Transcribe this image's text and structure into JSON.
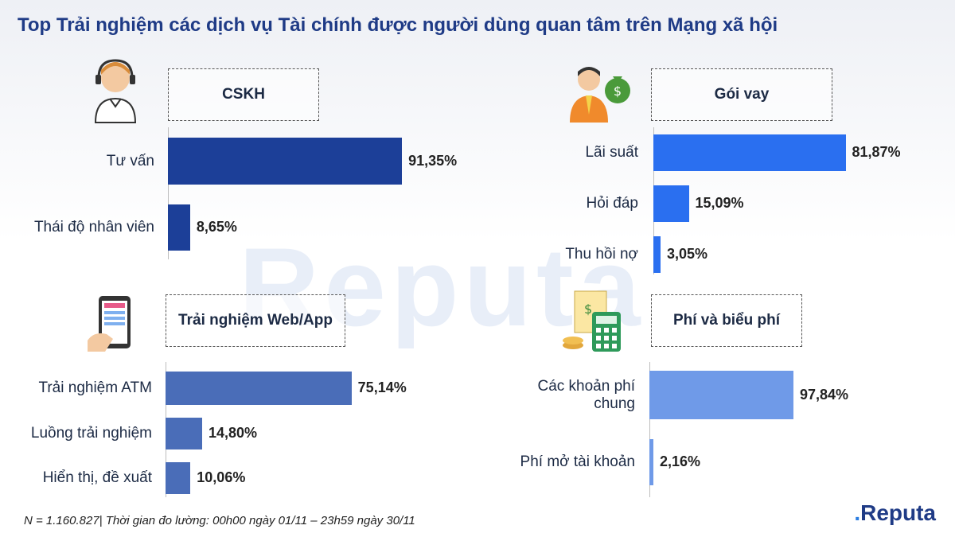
{
  "title": "Top Trải nghiệm các dịch vụ Tài chính được người dùng quan tâm trên Mạng xã hội",
  "watermark": "Reputa",
  "footer": "N = 1.160.827| Thời gian đo lường: 00h00 ngày 01/11 – 23h59 ngày 30/11",
  "logo": {
    "text": "Reputa"
  },
  "colors": {
    "cskh": "#1c3f98",
    "goivay": "#2a6ff0",
    "webapp": "#4a6db8",
    "phi": "#6f9ae8"
  },
  "chart_data": [
    {
      "type": "bar",
      "title": "CSKH",
      "categories": [
        "Tư vấn",
        "Thái độ nhân viên"
      ],
      "values": [
        91.35,
        8.65
      ],
      "labels": [
        "91,35%",
        "8,65%"
      ],
      "icon": "customer-service-icon",
      "orientation": "horizontal"
    },
    {
      "type": "bar",
      "title": "Gói vay",
      "categories": [
        "Lãi suất",
        "Hỏi đáp",
        "Thu hồi nợ"
      ],
      "values": [
        81.87,
        15.09,
        3.05
      ],
      "labels": [
        "81,87%",
        "15,09%",
        "3,05%"
      ],
      "icon": "money-bag-icon",
      "orientation": "horizontal"
    },
    {
      "type": "bar",
      "title": "Trải nghiệm Web/App",
      "categories": [
        "Trải nghiệm ATM",
        "Luồng trải nghiệm",
        "Hiển thị, đề xuất"
      ],
      "values": [
        75.14,
        14.8,
        10.06
      ],
      "labels": [
        "75,14%",
        "14,80%",
        "10,06%"
      ],
      "icon": "phone-app-icon",
      "orientation": "horizontal"
    },
    {
      "type": "bar",
      "title": "Phí và biểu phí",
      "categories": [
        "Các khoản phí chung",
        "Phí mở tài khoản"
      ],
      "values": [
        97.84,
        2.16
      ],
      "labels": [
        "97,84%",
        "2,16%"
      ],
      "icon": "calculator-fee-icon",
      "orientation": "horizontal"
    }
  ]
}
